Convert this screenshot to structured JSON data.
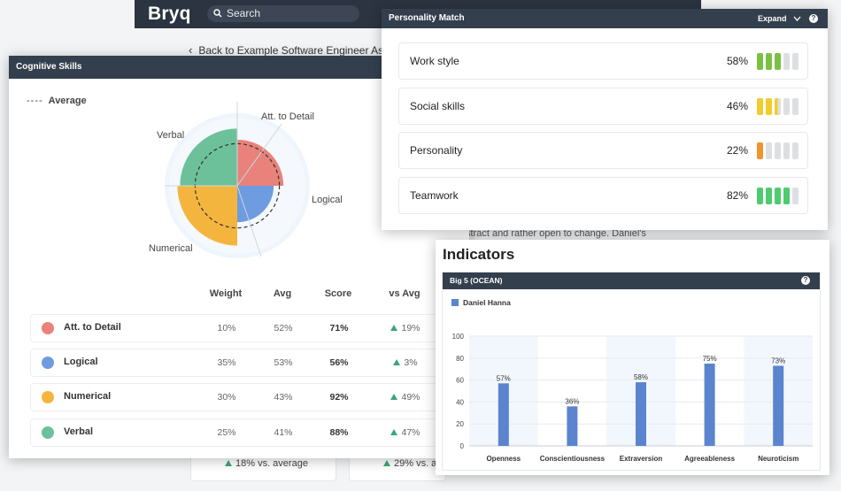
{
  "app": {
    "brand": "Bryq",
    "search_placeholder": "Search",
    "back_link": "Back to Example Software Engineer Assessm",
    "bg_snippet": "stract and rather open to change. Daniel's",
    "bg_cards": [
      "18% vs. average",
      "29% vs. a"
    ]
  },
  "cognitive": {
    "title": "Cognitive Skills",
    "legend": "Average",
    "legend_dash": "----",
    "columns": {
      "weight": "Weight",
      "avg": "Avg",
      "score": "Score",
      "vs_avg": "vs Avg"
    },
    "skills": [
      {
        "name": "Att. to Detail",
        "weight": "10%",
        "avg": "52%",
        "score": "71%",
        "vs_avg": "19%",
        "weight_value": 10,
        "avg_value": 52,
        "score_value": 71,
        "color": "#e8827a"
      },
      {
        "name": "Logical",
        "weight": "35%",
        "avg": "53%",
        "score": "56%",
        "vs_avg": "3%",
        "weight_value": 35,
        "avg_value": 53,
        "score_value": 56,
        "color": "#6f9be0"
      },
      {
        "name": "Numerical",
        "weight": "30%",
        "avg": "43%",
        "score": "92%",
        "vs_avg": "49%",
        "weight_value": 30,
        "avg_value": 43,
        "score_value": 92,
        "color": "#f4b53f"
      },
      {
        "name": "Verbal",
        "weight": "25%",
        "avg": "41%",
        "score": "88%",
        "vs_avg": "47%",
        "weight_value": 25,
        "avg_value": 41,
        "score_value": 88,
        "color": "#6cc19a"
      }
    ]
  },
  "personality": {
    "title": "Personality Match",
    "expand_label": "Expand",
    "help": "?",
    "rows": [
      {
        "label": "Work style",
        "pct": "58%",
        "filled": 3,
        "color": "#7cc043"
      },
      {
        "label": "Social skills",
        "pct": "46%",
        "filled": 2.5,
        "color": "#f1cc2b"
      },
      {
        "label": "Personality",
        "pct": "22%",
        "filled": 1,
        "color": "#f0952b"
      },
      {
        "label": "Teamwork",
        "pct": "82%",
        "filled": 4,
        "color": "#4ecb6e"
      }
    ],
    "total_segments": 5
  },
  "indicators": {
    "title": "Indicators",
    "panel_title": "Big 5 (OCEAN)",
    "help": "?",
    "series_name": "Daniel Hanna",
    "bar_color": "#5a84ce"
  },
  "chart_data": [
    {
      "type": "bar",
      "title": "Big 5 (OCEAN)",
      "categories": [
        "Openness",
        "Conscientiousness",
        "Extraversion",
        "Agreeableness",
        "Neuroticism"
      ],
      "series": [
        {
          "name": "Daniel Hanna",
          "values": [
            57,
            36,
            58,
            75,
            73
          ]
        }
      ],
      "value_labels": [
        "57%",
        "36%",
        "58%",
        "75%",
        "73%"
      ],
      "yticks": [
        "0",
        "20",
        "40",
        "60",
        "80",
        "100"
      ],
      "ylim": [
        0,
        100
      ],
      "legend": "top-left"
    }
  ]
}
